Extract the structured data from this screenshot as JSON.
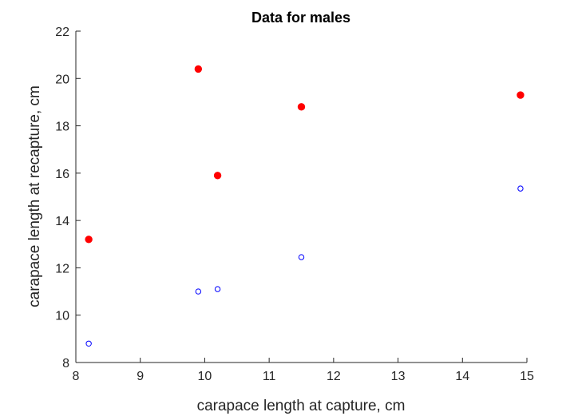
{
  "chart_data": {
    "type": "scatter",
    "title": "Data for males",
    "xlabel": "carapace length at capture, cm",
    "ylabel": "carapace length at recapture, cm",
    "xlim": [
      8,
      15
    ],
    "ylim": [
      8,
      22
    ],
    "xticks": [
      8,
      9,
      10,
      11,
      12,
      13,
      14,
      15
    ],
    "yticks": [
      8,
      10,
      12,
      14,
      16,
      18,
      20,
      22
    ],
    "grid": false,
    "series": [
      {
        "color": "#ff0000",
        "marker": "filled-circle",
        "points": [
          {
            "x": 8.2,
            "y": 13.2
          },
          {
            "x": 9.9,
            "y": 20.4
          },
          {
            "x": 10.2,
            "y": 15.9
          },
          {
            "x": 11.5,
            "y": 18.8
          },
          {
            "x": 14.9,
            "y": 19.3
          }
        ]
      },
      {
        "color": "#0000ff",
        "marker": "open-circle",
        "points": [
          {
            "x": 8.2,
            "y": 8.8
          },
          {
            "x": 9.9,
            "y": 11.0
          },
          {
            "x": 10.2,
            "y": 11.1
          },
          {
            "x": 11.5,
            "y": 12.45
          },
          {
            "x": 14.9,
            "y": 15.35
          }
        ]
      }
    ]
  }
}
